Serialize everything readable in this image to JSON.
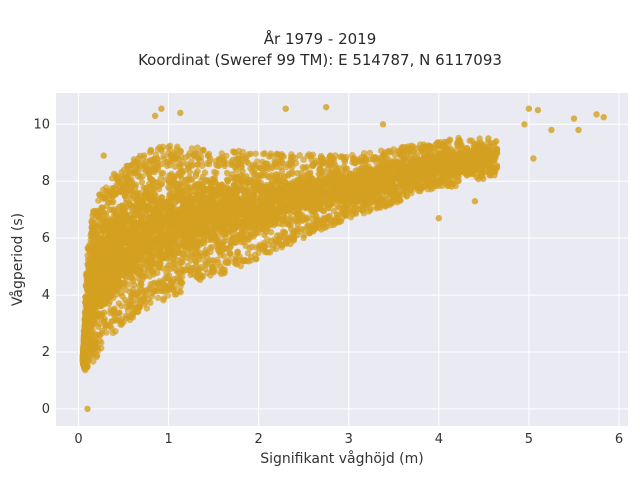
{
  "chart_data": {
    "type": "scatter",
    "title": "År 1979 - 2019",
    "subtitle": "Koordinat (Sweref 99 TM): E 514787, N 6117093",
    "xlabel": "Signifikant våghöjd (m)",
    "ylabel": "Vågperiod (s)",
    "xlim": [
      -0.25,
      6.1
    ],
    "ylim": [
      -0.6,
      11.1
    ],
    "x_ticks": [
      0,
      1,
      2,
      3,
      4,
      5,
      6
    ],
    "y_ticks": [
      0,
      2,
      4,
      6,
      8,
      10
    ],
    "grid": true,
    "legend": "none",
    "marker_color": "#d4a020",
    "plot_background": "#eaeaf2",
    "envelope": {
      "description_points_upper": [
        [
          0.05,
          2.0
        ],
        [
          0.1,
          6.0
        ],
        [
          0.2,
          7.5
        ],
        [
          0.4,
          8.3
        ],
        [
          0.7,
          9.0
        ],
        [
          1.0,
          9.3
        ],
        [
          2.0,
          9.0
        ],
        [
          3.0,
          8.9
        ],
        [
          4.0,
          9.4
        ],
        [
          5.0,
          10.0
        ]
      ],
      "description_points_lower": [
        [
          0.05,
          1.5
        ],
        [
          0.1,
          1.2
        ],
        [
          0.3,
          2.4
        ],
        [
          0.6,
          3.2
        ],
        [
          1.0,
          3.9
        ],
        [
          1.5,
          4.6
        ],
        [
          2.0,
          5.3
        ],
        [
          2.5,
          6.0
        ],
        [
          3.0,
          6.7
        ],
        [
          3.5,
          7.2
        ],
        [
          4.0,
          7.8
        ]
      ]
    },
    "outliers": [
      {
        "x": 0.1,
        "y": 0.0
      },
      {
        "x": 0.28,
        "y": 8.9
      },
      {
        "x": 0.92,
        "y": 10.55
      },
      {
        "x": 1.13,
        "y": 10.4
      },
      {
        "x": 0.85,
        "y": 10.3
      },
      {
        "x": 2.3,
        "y": 10.55
      },
      {
        "x": 2.75,
        "y": 10.6
      },
      {
        "x": 3.38,
        "y": 10.0
      },
      {
        "x": 4.0,
        "y": 6.7
      },
      {
        "x": 4.4,
        "y": 7.3
      },
      {
        "x": 4.55,
        "y": 9.5
      },
      {
        "x": 4.95,
        "y": 10.0
      },
      {
        "x": 5.0,
        "y": 10.55
      },
      {
        "x": 5.1,
        "y": 10.5
      },
      {
        "x": 5.05,
        "y": 8.8
      },
      {
        "x": 5.25,
        "y": 9.8
      },
      {
        "x": 5.5,
        "y": 10.2
      },
      {
        "x": 5.55,
        "y": 9.8
      },
      {
        "x": 5.75,
        "y": 10.35
      },
      {
        "x": 5.83,
        "y": 10.25
      }
    ]
  }
}
